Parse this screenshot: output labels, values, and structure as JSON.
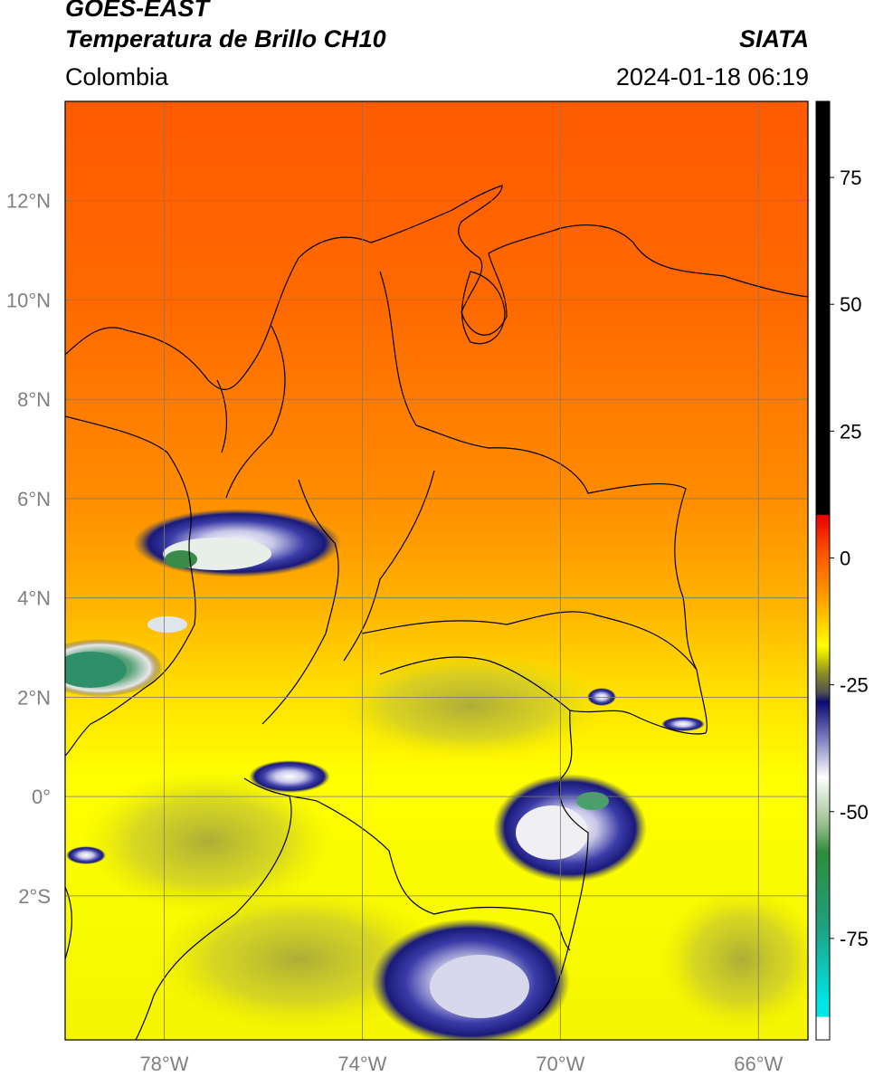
{
  "header": {
    "satellite": "GOES-EAST",
    "product": "Temperatura de Brillo CH10",
    "agency": "SIATA",
    "region": "Colombia",
    "datetime": "2024-01-18 06:19"
  },
  "map": {
    "longitude_labels": [
      "78°W",
      "74°W",
      "70°W",
      "66°W"
    ],
    "latitude_labels": [
      "12°N",
      "10°N",
      "8°N",
      "6°N",
      "4°N",
      "2°N",
      "0°",
      "2°S"
    ],
    "lon_range": [
      -80,
      -65
    ],
    "lat_range": [
      -4.9,
      14
    ],
    "longitudes": [
      -78,
      -74,
      -70,
      -66
    ],
    "latitudes": [
      12,
      10,
      8,
      6,
      4,
      2,
      0,
      -2
    ],
    "gridlines": true
  },
  "colorbar": {
    "labels": [
      "75",
      "50",
      "25",
      "0",
      "-25",
      "-50",
      "-75"
    ],
    "values": [
      75,
      50,
      25,
      0,
      -25,
      -50,
      -75
    ],
    "range": [
      -95,
      90
    ],
    "colors": {
      "warm_top": "#000000",
      "red": "#e60000",
      "orange": "#ff7a00",
      "yellow": "#ffff00",
      "olive": "#8a8a2a",
      "navy": "#1a1a7a",
      "white": "#ffffff",
      "green": "#2e8b3a",
      "cyan": "#00e5e5"
    }
  }
}
